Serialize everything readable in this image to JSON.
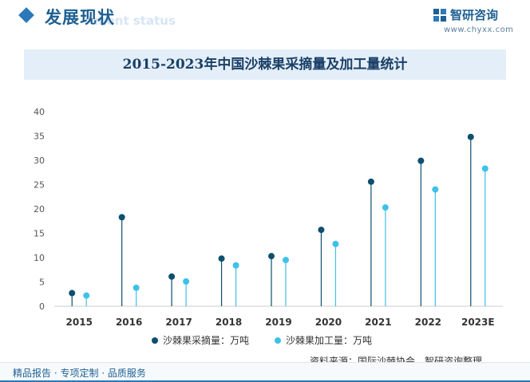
{
  "header": {
    "section_title": "发展现状",
    "section_subtitle": "ment status",
    "brand_name": "智研咨询",
    "brand_url": "www.chyxx.com"
  },
  "chart_title": "2015-2023年中国沙棘果采摘量及加工量统计",
  "colors": {
    "series_1": "#0d4f6e",
    "series_2": "#3fc1e6",
    "axis": "#cccccc"
  },
  "chart_data": {
    "type": "lollipop",
    "categories": [
      "2015",
      "2016",
      "2017",
      "2018",
      "2019",
      "2020",
      "2021",
      "2022",
      "2023E"
    ],
    "series": [
      {
        "name": "沙棘果采摘量：万吨",
        "values": [
          2.7,
          18.3,
          6.1,
          9.8,
          10.3,
          15.7,
          25.6,
          29.9,
          34.8
        ]
      },
      {
        "name": "沙棘果加工量：万吨",
        "values": [
          2.2,
          3.8,
          5.1,
          8.4,
          9.5,
          12.8,
          20.3,
          24.0,
          28.3
        ]
      }
    ],
    "y_ticks": [
      "0",
      "5",
      "10",
      "15",
      "20",
      "25",
      "30",
      "35",
      "40"
    ],
    "ylim": [
      0,
      40
    ]
  },
  "source": "资料来源：国际沙棘协会、智研咨询整理",
  "footer": "精品报告 · 专项定制 · 品质服务"
}
